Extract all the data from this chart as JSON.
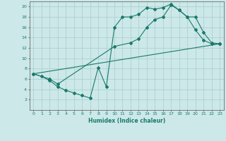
{
  "xlabel": "Humidex (Indice chaleur)",
  "xlim": [
    -0.5,
    23.5
  ],
  "ylim": [
    0,
    21
  ],
  "xtick_labels": [
    "0",
    "1",
    "2",
    "3",
    "4",
    "5",
    "6",
    "7",
    "8",
    "9",
    "10",
    "11",
    "12",
    "13",
    "14",
    "15",
    "16",
    "17",
    "18",
    "19",
    "20",
    "21",
    "22",
    "23"
  ],
  "xtick_vals": [
    0,
    1,
    2,
    3,
    4,
    5,
    6,
    7,
    8,
    9,
    10,
    11,
    12,
    13,
    14,
    15,
    16,
    17,
    18,
    19,
    20,
    21,
    22,
    23
  ],
  "ytick_vals": [
    2,
    4,
    6,
    8,
    10,
    12,
    14,
    16,
    18,
    20
  ],
  "background_color": "#cce8e8",
  "grid_color": "#aacccc",
  "line_color": "#1a7a6a",
  "series1_x": [
    0,
    1,
    2,
    3,
    4,
    5,
    6,
    7,
    8,
    9,
    10,
    11,
    12,
    13,
    14,
    15,
    16,
    17,
    18,
    19,
    20,
    21,
    22,
    23
  ],
  "series1_y": [
    7.0,
    6.5,
    5.7,
    4.5,
    3.8,
    3.3,
    2.8,
    2.3,
    8.2,
    4.5,
    16.0,
    18.0,
    18.0,
    18.5,
    19.8,
    19.5,
    19.8,
    20.5,
    19.3,
    18.0,
    15.5,
    13.5,
    12.8,
    12.8
  ],
  "series2_x": [
    0,
    2,
    3,
    10,
    12,
    13,
    14,
    15,
    16,
    17,
    18,
    19,
    20,
    21,
    22,
    23
  ],
  "series2_y": [
    7.0,
    6.0,
    5.0,
    12.3,
    13.0,
    13.8,
    16.0,
    17.5,
    18.0,
    20.3,
    19.3,
    18.0,
    18.0,
    15.0,
    13.0,
    12.8
  ],
  "series3_x": [
    0,
    23
  ],
  "series3_y": [
    7.0,
    12.8
  ]
}
